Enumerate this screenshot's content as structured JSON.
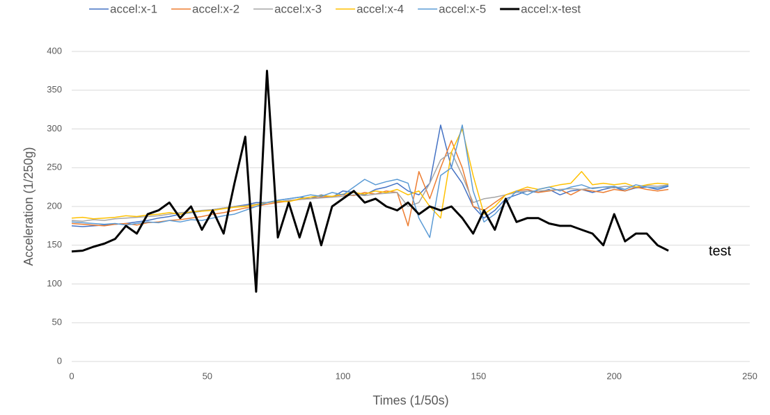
{
  "chart_data": {
    "type": "line",
    "x_label": "Times (1/50s)",
    "y_label": "Acceleration (1/250g)",
    "annotation": "test",
    "xlim": [
      0,
      250
    ],
    "xticks": [
      0,
      50,
      100,
      150,
      200,
      250
    ],
    "ylim": [
      0,
      400
    ],
    "yticks": [
      0,
      50,
      100,
      150,
      200,
      250,
      300,
      350,
      400
    ],
    "grid": true,
    "legend": "top",
    "x": [
      0,
      4,
      8,
      12,
      16,
      20,
      24,
      28,
      32,
      36,
      40,
      44,
      48,
      52,
      56,
      60,
      64,
      68,
      72,
      76,
      80,
      84,
      88,
      92,
      96,
      100,
      104,
      108,
      112,
      116,
      120,
      124,
      128,
      132,
      136,
      140,
      144,
      148,
      152,
      156,
      160,
      164,
      168,
      172,
      176,
      180,
      184,
      188,
      192,
      196,
      200,
      204,
      208,
      212,
      216,
      220
    ],
    "series": [
      {
        "name": "accel:x-1",
        "color": "#4472c4",
        "values": [
          175,
          174,
          175,
          176,
          177,
          178,
          180,
          182,
          185,
          187,
          190,
          192,
          194,
          196,
          198,
          200,
          202,
          205,
          205,
          208,
          210,
          212,
          210,
          215,
          212,
          220,
          218,
          215,
          222,
          225,
          230,
          220,
          215,
          230,
          305,
          250,
          230,
          200,
          185,
          195,
          210,
          215,
          220,
          218,
          222,
          215,
          220,
          222,
          218,
          222,
          225,
          220,
          224,
          225,
          222,
          226
        ]
      },
      {
        "name": "accel:x-2",
        "color": "#ed7d31",
        "values": [
          178,
          177,
          176,
          175,
          177,
          178,
          176,
          179,
          180,
          182,
          183,
          185,
          187,
          190,
          192,
          195,
          198,
          200,
          203,
          205,
          207,
          209,
          210,
          212,
          213,
          215,
          214,
          218,
          216,
          220,
          218,
          175,
          245,
          210,
          250,
          285,
          250,
          200,
          195,
          205,
          215,
          220,
          222,
          218,
          220,
          222,
          215,
          222,
          220,
          218,
          222,
          220,
          225,
          222,
          220,
          222
        ]
      },
      {
        "name": "accel:x-3",
        "color": "#a5a5a5",
        "values": [
          182,
          181,
          183,
          182,
          184,
          185,
          186,
          187,
          188,
          190,
          192,
          193,
          195,
          196,
          198,
          200,
          201,
          203,
          205,
          206,
          208,
          209,
          210,
          211,
          212,
          213,
          215,
          214,
          216,
          217,
          218,
          200,
          205,
          230,
          260,
          270,
          240,
          205,
          210,
          212,
          215,
          218,
          220,
          220,
          221,
          222,
          223,
          222,
          224,
          225,
          224,
          226,
          225,
          227,
          226,
          228
        ]
      },
      {
        "name": "accel:x-4",
        "color": "#ffc000",
        "values": [
          185,
          186,
          184,
          185,
          186,
          188,
          187,
          189,
          190,
          192,
          190,
          193,
          194,
          195,
          197,
          199,
          200,
          202,
          205,
          207,
          206,
          210,
          212,
          214,
          213,
          216,
          218,
          216,
          220,
          218,
          222,
          215,
          220,
          200,
          185,
          270,
          300,
          240,
          190,
          200,
          215,
          220,
          225,
          222,
          225,
          228,
          230,
          245,
          228,
          230,
          228,
          230,
          225,
          228,
          230,
          229
        ]
      },
      {
        "name": "accel:x-5",
        "color": "#5b9bd5",
        "values": [
          180,
          179,
          178,
          177,
          178,
          176,
          178,
          180,
          179,
          182,
          180,
          183,
          182,
          185,
          188,
          190,
          195,
          200,
          205,
          208,
          210,
          212,
          215,
          213,
          218,
          215,
          225,
          235,
          228,
          232,
          235,
          230,
          185,
          160,
          240,
          250,
          305,
          220,
          180,
          190,
          205,
          220,
          215,
          222,
          225,
          220,
          225,
          228,
          223,
          225,
          226,
          222,
          228,
          225,
          224,
          227
        ]
      },
      {
        "name": "accel:x-test",
        "color": "#000000",
        "width": 3,
        "values": [
          142,
          143,
          148,
          152,
          158,
          175,
          165,
          190,
          195,
          205,
          185,
          200,
          170,
          195,
          165,
          230,
          290,
          90,
          375,
          160,
          205,
          160,
          205,
          150,
          200,
          210,
          220,
          205,
          210,
          200,
          195,
          205,
          190,
          200,
          195,
          200,
          185,
          165,
          195,
          170,
          210,
          180,
          185,
          185,
          178,
          175,
          175,
          170,
          165,
          150,
          190,
          155,
          165,
          165,
          150,
          143
        ]
      }
    ]
  }
}
